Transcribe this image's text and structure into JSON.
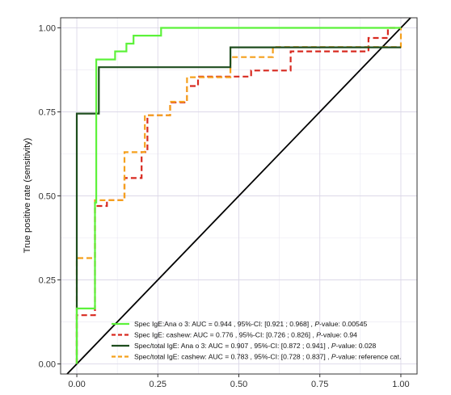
{
  "chart_data": {
    "type": "line",
    "title": "",
    "xlabel": "",
    "ylabel": "True positive rate (sensitivity)",
    "xlim": [
      -0.05,
      1.05
    ],
    "ylim": [
      -0.03,
      1.03
    ],
    "grid": true,
    "legend_position": "bottom-right",
    "x_ticks": [
      "0.00",
      "0.25",
      "0.50",
      "0.75",
      "1.00"
    ],
    "y_ticks": [
      "0.00",
      "0.25",
      "0.50",
      "0.75",
      "1.00"
    ],
    "reference_line": {
      "from": [
        0,
        0
      ],
      "to": [
        1,
        1
      ],
      "color": "#000000"
    },
    "series": [
      {
        "name": "Spec IgE:Ana o 3:",
        "auc_text": "AUC = 0.944 , 95%-CI: [0.921 ; 0.968] ,",
        "pvalue_label": "P",
        "pvalue_text": "-value: 0.00545",
        "color": "#5cf23a",
        "dash": "solid",
        "points": [
          [
            0,
            0
          ],
          [
            0,
            0.165
          ],
          [
            0.056,
            0.165
          ],
          [
            0.056,
            0.48
          ],
          [
            0.06,
            0.48
          ],
          [
            0.06,
            0.906
          ],
          [
            0.118,
            0.906
          ],
          [
            0.118,
            0.93
          ],
          [
            0.153,
            0.93
          ],
          [
            0.153,
            0.953
          ],
          [
            0.175,
            0.953
          ],
          [
            0.175,
            0.977
          ],
          [
            0.26,
            0.977
          ],
          [
            0.26,
            1.0
          ],
          [
            1.0,
            1.0
          ]
        ]
      },
      {
        "name": "Spec IgE: cashew:",
        "auc_text": "AUC = 0.776 , 95%-CI: [0.726 ; 0.826] ,",
        "pvalue_label": "P",
        "pvalue_text": "-value: 0.94",
        "color": "#d82a20",
        "dash": "dashed",
        "points": [
          [
            0,
            0
          ],
          [
            0,
            0.145
          ],
          [
            0.056,
            0.145
          ],
          [
            0.056,
            0.47
          ],
          [
            0.093,
            0.47
          ],
          [
            0.093,
            0.487
          ],
          [
            0.147,
            0.487
          ],
          [
            0.147,
            0.553
          ],
          [
            0.2,
            0.553
          ],
          [
            0.2,
            0.63
          ],
          [
            0.218,
            0.63
          ],
          [
            0.218,
            0.74
          ],
          [
            0.288,
            0.74
          ],
          [
            0.288,
            0.778
          ],
          [
            0.34,
            0.778
          ],
          [
            0.34,
            0.827
          ],
          [
            0.374,
            0.827
          ],
          [
            0.374,
            0.855
          ],
          [
            0.538,
            0.855
          ],
          [
            0.538,
            0.873
          ],
          [
            0.66,
            0.873
          ],
          [
            0.66,
            0.93
          ],
          [
            0.9,
            0.93
          ],
          [
            0.9,
            0.97
          ],
          [
            0.96,
            0.97
          ],
          [
            0.96,
            1.0
          ],
          [
            1.0,
            1.0
          ]
        ]
      },
      {
        "name": "Spec/total IgE: Ana o 3:",
        "auc_text": "AUC = 0.907 , 95%-CI: [0.872 ; 0.941] ,",
        "pvalue_label": "P",
        "pvalue_text": "-value: 0.028",
        "color": "#1e4d1e",
        "dash": "solid",
        "points": [
          [
            0,
            0
          ],
          [
            0,
            0.745
          ],
          [
            0.068,
            0.745
          ],
          [
            0.068,
            0.883
          ],
          [
            0.474,
            0.883
          ],
          [
            0.474,
            0.942
          ],
          [
            1.0,
            0.942
          ]
        ]
      },
      {
        "name": "Spec/total IgE: cashew:",
        "auc_text": "AUC = 0.783 , 95%-CI: [0.728 ; 0.837] ,",
        "pvalue_label": "P",
        "pvalue_text": "-value: reference cat.",
        "color": "#f5a01c",
        "dash": "dashed",
        "points": [
          [
            0,
            0
          ],
          [
            0,
            0.315
          ],
          [
            0.056,
            0.315
          ],
          [
            0.056,
            0.487
          ],
          [
            0.147,
            0.487
          ],
          [
            0.147,
            0.63
          ],
          [
            0.21,
            0.63
          ],
          [
            0.21,
            0.74
          ],
          [
            0.288,
            0.74
          ],
          [
            0.288,
            0.78
          ],
          [
            0.34,
            0.78
          ],
          [
            0.34,
            0.853
          ],
          [
            0.474,
            0.853
          ],
          [
            0.474,
            0.913
          ],
          [
            0.605,
            0.913
          ],
          [
            0.605,
            0.943
          ],
          [
            1.0,
            0.943
          ],
          [
            1.0,
            1.0
          ]
        ]
      }
    ]
  }
}
